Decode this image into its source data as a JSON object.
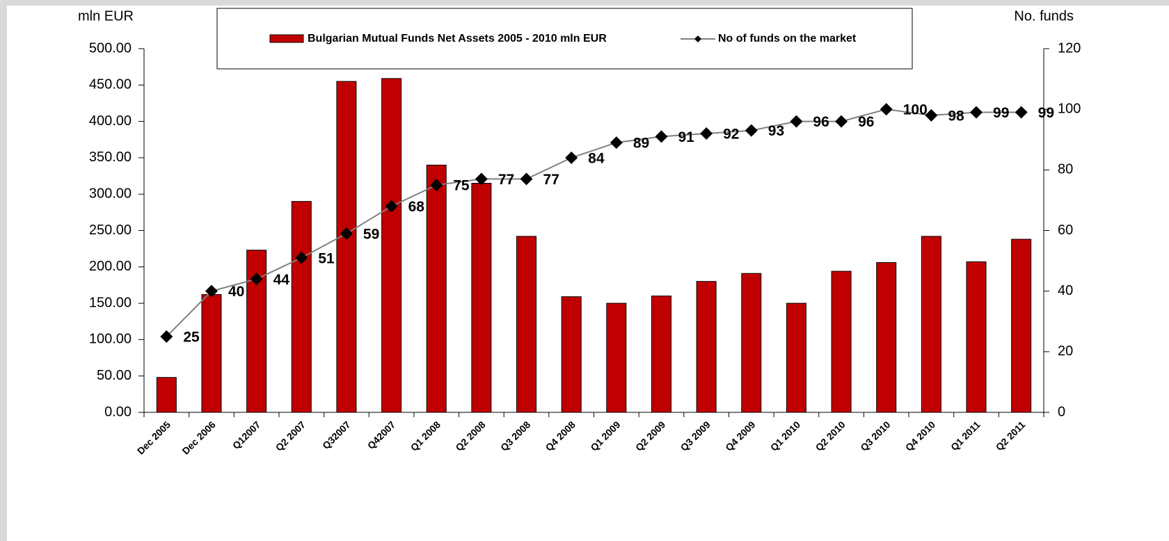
{
  "chart_data": {
    "type": "bar",
    "ylabel": "mln EUR",
    "y2label": "No. funds",
    "categories": [
      "Dec 2005",
      "Dec 2006",
      "Q12007",
      "Q2 2007",
      "Q32007",
      "Q42007",
      "Q1 2008",
      "Q2 2008",
      "Q3 2008",
      "Q4 2008",
      "Q1 2009",
      "Q2 2009",
      "Q3 2009",
      "Q4 2009",
      "Q1 2010",
      "Q2 2010",
      "Q3 2010",
      "Q4 2010",
      "Q1 2011",
      "Q2 2011"
    ],
    "series": [
      {
        "name": "Bulgarian Mutual Funds Net Assets 2005 - 2010 mln EUR",
        "type": "bar",
        "color": "#c00000",
        "values": [
          48,
          162,
          223,
          290,
          455,
          459,
          340,
          315,
          242,
          159,
          150,
          160,
          180,
          191,
          150,
          194,
          206,
          242,
          207,
          238
        ]
      },
      {
        "name": "No of funds on the market",
        "type": "line",
        "axis": "y2",
        "color": "#808080",
        "marker_color": "#000000",
        "data_labels": true,
        "values": [
          25,
          40,
          44,
          51,
          59,
          68,
          75,
          77,
          77,
          84,
          89,
          91,
          92,
          93,
          96,
          96,
          100,
          98,
          99,
          99
        ]
      }
    ],
    "ylim": [
      0,
      500
    ],
    "yticks": [
      {
        "value": 0,
        "label": "0.00"
      },
      {
        "value": 50,
        "label": "50.00"
      },
      {
        "value": 100,
        "label": "100.00"
      },
      {
        "value": 150,
        "label": "150.00"
      },
      {
        "value": 200,
        "label": "200.00"
      },
      {
        "value": 250,
        "label": "250.00"
      },
      {
        "value": 300,
        "label": "300.00"
      },
      {
        "value": 350,
        "label": "350.00"
      },
      {
        "value": 400,
        "label": "400.00"
      },
      {
        "value": 450,
        "label": "450.00"
      },
      {
        "value": 500,
        "label": "500.00"
      }
    ],
    "y2lim": [
      0,
      120
    ],
    "y2ticks": [
      0,
      20,
      40,
      60,
      80,
      100,
      120
    ],
    "legend": "top",
    "grid": false
  }
}
